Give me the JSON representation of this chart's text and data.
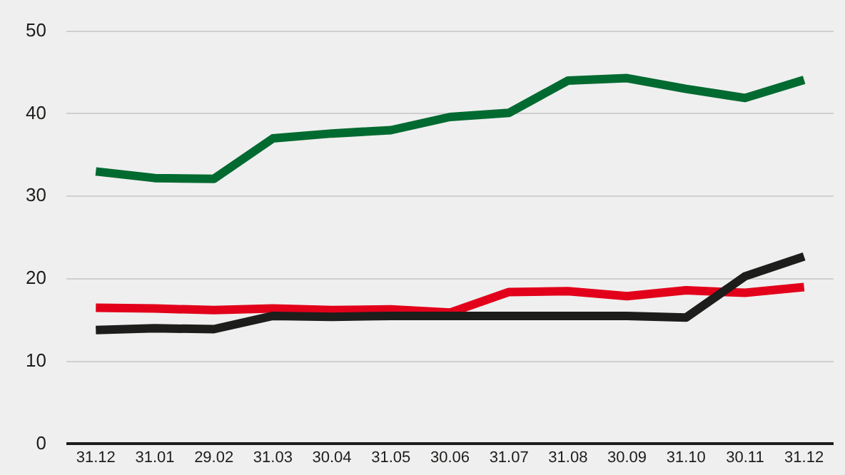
{
  "chart_data": {
    "type": "line",
    "categories": [
      "31.12",
      "31.01",
      "29.02",
      "31.03",
      "30.04",
      "31.05",
      "30.06",
      "31.07",
      "31.08",
      "30.09",
      "31.10",
      "30.11",
      "31.12"
    ],
    "series": [
      {
        "color": "#006a30",
        "values": [
          33,
          32.2,
          32.1,
          37,
          37.6,
          38,
          39.6,
          40.1,
          44,
          44.3,
          43,
          41.9,
          44.1
        ]
      },
      {
        "color": "#1d1d1b",
        "values": [
          13.8,
          14,
          13.9,
          15.5,
          15.4,
          15.5,
          15.5,
          15.5,
          15.5,
          15.5,
          15.3,
          20.3,
          22.7
        ]
      },
      {
        "color": "#e2001a",
        "values": [
          16.5,
          16.4,
          16.2,
          16.4,
          16.2,
          16.3,
          15.9,
          18.4,
          18.5,
          17.9,
          18.6,
          18.3,
          19
        ]
      }
    ],
    "ylim": [
      0,
      50
    ],
    "yticks": [
      0,
      10,
      20,
      30,
      40,
      50
    ],
    "grid": "y",
    "legend": false,
    "marker": "none",
    "line_style": "solid"
  }
}
